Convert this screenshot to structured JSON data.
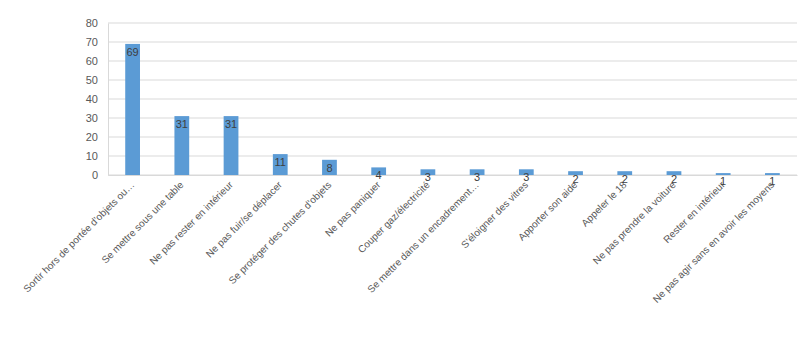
{
  "chart_data": {
    "type": "bar",
    "categories": [
      "Sortir hors de portée d'objets ou…",
      "Se mettre sous une table",
      "Ne pas rester en intérieur",
      "Ne pas fuir/se déplacer",
      "Se protéger des chutes d'objets",
      "Ne pas paniquer",
      "Couper gaz/électricité",
      "Se mettre dans un encadrement…",
      "S'éloigner des vitres",
      "Apporter son aide",
      "Appeler le 18",
      "Ne pas prendre la voiture",
      "Rester en intérieur",
      "Ne pas agir sans en avoir les moyens"
    ],
    "values": [
      69,
      31,
      31,
      11,
      8,
      4,
      3,
      3,
      3,
      2,
      2,
      2,
      1,
      1
    ],
    "color": "#5b9bd5",
    "ylim": [
      0,
      80
    ],
    "yticks": [
      0,
      10,
      20,
      30,
      40,
      50,
      60,
      70,
      80
    ],
    "grid": true,
    "data_labels": true
  }
}
